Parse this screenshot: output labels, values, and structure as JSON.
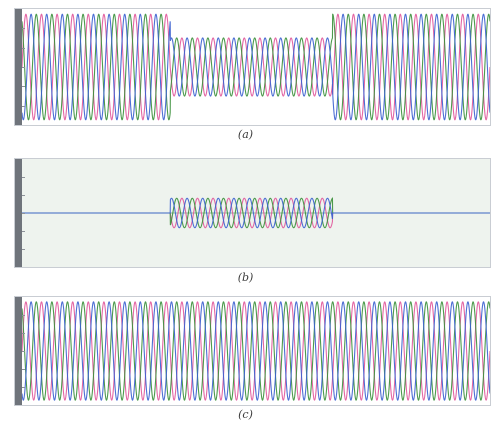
{
  "chart_data": [
    {
      "type": "line",
      "panel": "a",
      "caption": "(a)",
      "background": "#ffffff",
      "grid": false,
      "legend": "none",
      "xlim": [
        0,
        30
      ],
      "ylim": [
        -1.1,
        1.1
      ],
      "cycles": 30,
      "phases_deg": [
        0,
        120,
        240
      ],
      "envelope": [
        {
          "x_start": 0,
          "x_end": 9.5,
          "amplitude": 1.0
        },
        {
          "x_start": 9.5,
          "x_end": 19.9,
          "amplitude": 0.55
        },
        {
          "x_start": 19.9,
          "x_end": 30,
          "amplitude": 1.0
        }
      ],
      "series": [
        {
          "color": "#e0579a"
        },
        {
          "color": "#3a8f3a"
        },
        {
          "color": "#3a5fcf"
        }
      ]
    },
    {
      "type": "line",
      "panel": "b",
      "caption": "(b)",
      "background": "#eef3ee",
      "grid": false,
      "legend": "none",
      "xlim": [
        0,
        30
      ],
      "ylim": [
        -1.1,
        1.1
      ],
      "cycles": 30,
      "phases_deg": [
        0,
        120,
        240
      ],
      "baseline_color": "#8fb79a",
      "envelope": [
        {
          "x_start": 0,
          "x_end": 9.5,
          "amplitude": 0.0
        },
        {
          "x_start": 9.5,
          "x_end": 19.9,
          "amplitude": 0.3
        },
        {
          "x_start": 19.9,
          "x_end": 30,
          "amplitude": 0.0
        }
      ],
      "series": [
        {
          "color": "#e0579a"
        },
        {
          "color": "#3a8f3a"
        },
        {
          "color": "#3a5fcf"
        }
      ]
    },
    {
      "type": "line",
      "panel": "c",
      "caption": "(c)",
      "background": "#ffffff",
      "grid": false,
      "legend": "none",
      "xlim": [
        0,
        30
      ],
      "ylim": [
        -1.1,
        1.1
      ],
      "cycles": 30,
      "phases_deg": [
        0,
        120,
        240
      ],
      "envelope": [
        {
          "x_start": 0,
          "x_end": 30,
          "amplitude": 1.0
        }
      ],
      "series": [
        {
          "color": "#e0579a"
        },
        {
          "color": "#3a8f3a"
        },
        {
          "color": "#3a5fcf"
        }
      ]
    }
  ]
}
